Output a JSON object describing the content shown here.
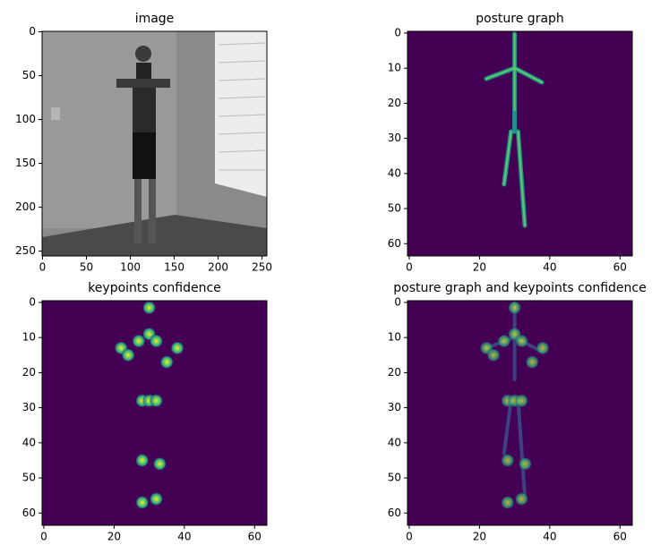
{
  "chart_data": [
    {
      "type": "image",
      "title": "image",
      "xlim": [
        -0.5,
        255.5
      ],
      "ylim": [
        255.5,
        -0.5
      ],
      "xticks": [
        0,
        50,
        100,
        150,
        200,
        250
      ],
      "yticks": [
        0,
        50,
        100,
        150,
        200,
        250
      ]
    },
    {
      "type": "image",
      "title": "posture graph",
      "xlim": [
        -0.5,
        63.5
      ],
      "ylim": [
        63.5,
        -0.5
      ],
      "xticks": [
        0,
        20,
        40,
        60
      ],
      "yticks": [
        0,
        10,
        20,
        30,
        40,
        50,
        60
      ]
    },
    {
      "type": "image",
      "title": "keypoints confidence",
      "xlim": [
        -0.5,
        63.5
      ],
      "ylim": [
        63.5,
        -0.5
      ],
      "xticks": [
        0,
        20,
        40,
        60
      ],
      "yticks": [
        0,
        10,
        20,
        30,
        40,
        50,
        60
      ],
      "keypoints": {
        "x": [
          30,
          30,
          27,
          32,
          22,
          24,
          38,
          35,
          28,
          30,
          32,
          28,
          33,
          28,
          32
        ],
        "y": [
          1.5,
          9,
          11,
          11,
          13,
          15,
          13,
          17,
          28,
          28,
          28,
          45,
          46,
          57,
          56
        ]
      }
    },
    {
      "type": "image",
      "title": "posture graph and keypoints confidence",
      "xlim": [
        -0.5,
        63.5
      ],
      "ylim": [
        63.5,
        -0.5
      ],
      "xticks": [
        0,
        20,
        40,
        60
      ],
      "yticks": [
        0,
        10,
        20,
        30,
        40,
        50,
        60
      ],
      "keypoints": {
        "x": [
          30,
          30,
          27,
          32,
          22,
          24,
          38,
          35,
          28,
          30,
          32,
          28,
          33,
          28,
          32
        ],
        "y": [
          1.5,
          9,
          11,
          11,
          13,
          15,
          13,
          17,
          28,
          28,
          28,
          45,
          46,
          57,
          56
        ]
      }
    }
  ]
}
